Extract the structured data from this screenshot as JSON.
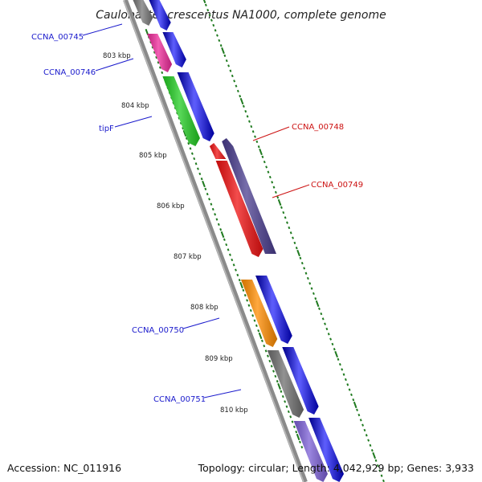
{
  "title": "Caulobacter crescentus NA1000, complete genome",
  "footer": {
    "accession": "Accession: NC_011916",
    "topology": "Topology: circular; Length: 4,042,929 bp; Genes: 3,933"
  },
  "colors": {
    "backbone": "#8a8a8a",
    "tick": "#1f7a1f",
    "label_blue": "#1a1acc",
    "label_red": "#cc1111"
  },
  "ticks": [
    "803 kbp",
    "804 kbp",
    "805 kbp",
    "806 kbp",
    "807 kbp",
    "808 kbp",
    "809 kbp",
    "810 kbp"
  ],
  "genes": [
    {
      "name": "CCNA_00745",
      "color": "#777777",
      "label_color": "#1a1acc"
    },
    {
      "name": "CCNA_00746",
      "color": "#ee2a9a",
      "label_color": "#1a1acc"
    },
    {
      "name": "tipF",
      "color": "#22cc22",
      "label_color": "#1a1acc"
    },
    {
      "name": "CCNA_00748",
      "color": "#ee1111",
      "label_color": "#cc1111"
    },
    {
      "name": "CCNA_00749",
      "color": "#4a3d8f",
      "label_color": "#cc1111"
    },
    {
      "name": "CCNA_00750",
      "color": "#ff8c00",
      "label_color": "#1a1acc"
    },
    {
      "name": "CCNA_00751",
      "color": "#6e6e6e",
      "label_color": "#1a1acc"
    }
  ]
}
